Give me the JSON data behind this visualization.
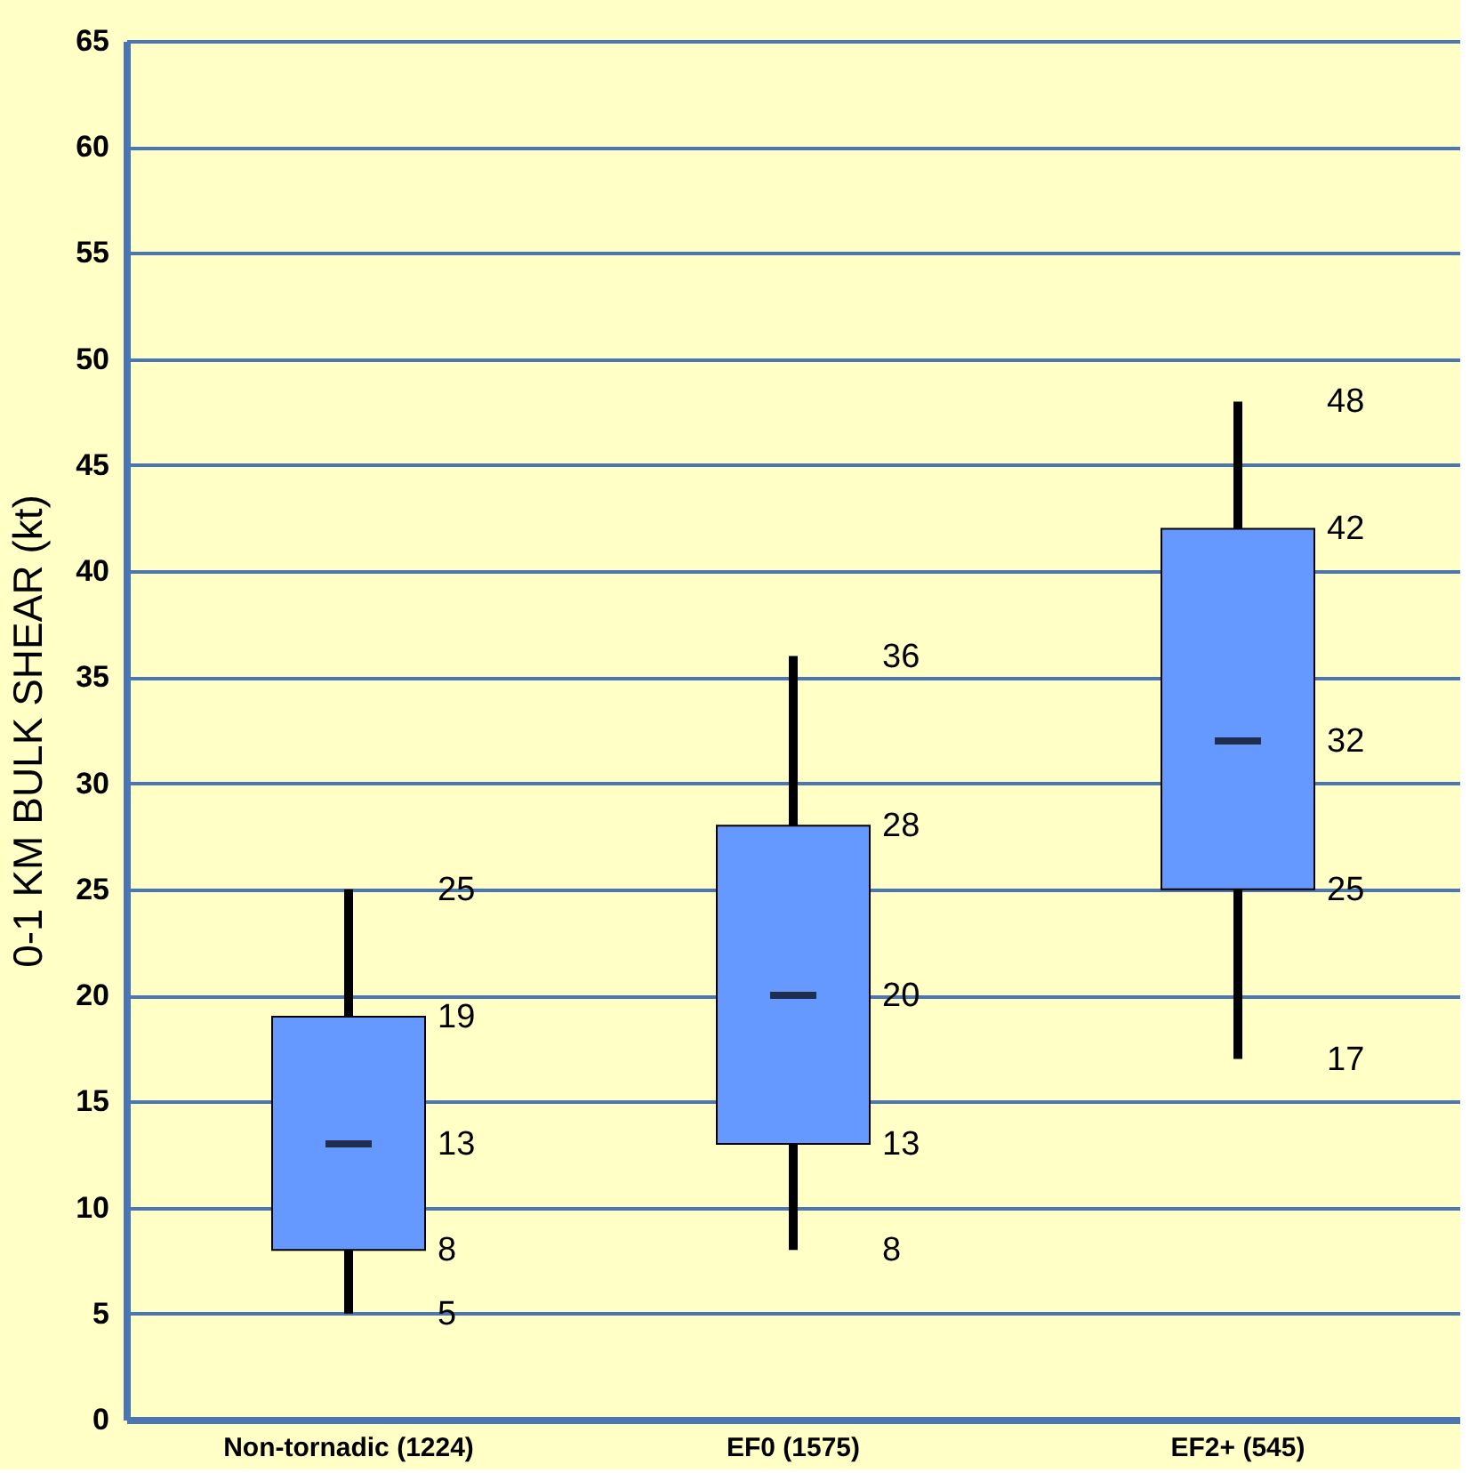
{
  "chart_data": {
    "type": "box",
    "ylabel": "0-1 KM BULK SHEAR (kt)",
    "categories": [
      "Non-tornadic (1224)",
      "EF0 (1575)",
      "EF2+ (545)"
    ],
    "boxes": [
      {
        "low": 5,
        "q1": 8,
        "median": 13,
        "q3": 19,
        "high": 25
      },
      {
        "low": 8,
        "q1": 13,
        "median": 20,
        "q3": 28,
        "high": 36
      },
      {
        "low": 17,
        "q1": 25,
        "median": 32,
        "q3": 42,
        "high": 48
      }
    ],
    "colors": [
      "#6699ff",
      "#6699ff",
      "#6699ff"
    ],
    "ylim": [
      0,
      65
    ],
    "yticks": [
      0,
      5,
      10,
      15,
      20,
      25,
      30,
      35,
      40,
      45,
      50,
      55,
      60,
      65
    ],
    "grid": "y",
    "annotations": [
      {
        "text": "5",
        "x": "Non-tornadic (1224)",
        "y": 5
      },
      {
        "text": "8",
        "x": "Non-tornadic (1224)",
        "y": 8
      },
      {
        "text": "13",
        "x": "Non-tornadic (1224)",
        "y": 13
      },
      {
        "text": "19",
        "x": "Non-tornadic (1224)",
        "y": 19
      },
      {
        "text": "25",
        "x": "Non-tornadic (1224)",
        "y": 25
      },
      {
        "text": "8",
        "x": "EF0 (1575)",
        "y": 8
      },
      {
        "text": "13",
        "x": "EF0 (1575)",
        "y": 13
      },
      {
        "text": "20",
        "x": "EF0 (1575)",
        "y": 20
      },
      {
        "text": "28",
        "x": "EF0 (1575)",
        "y": 28
      },
      {
        "text": "36",
        "x": "EF0 (1575)",
        "y": 36
      },
      {
        "text": "17",
        "x": "EF2+ (545)",
        "y": 17
      },
      {
        "text": "25",
        "x": "EF2+ (545)",
        "y": 25
      },
      {
        "text": "32",
        "x": "EF2+ (545)",
        "y": 32
      },
      {
        "text": "42",
        "x": "EF2+ (545)",
        "y": 42
      },
      {
        "text": "48",
        "x": "EF2+ (545)",
        "y": 48
      }
    ]
  }
}
